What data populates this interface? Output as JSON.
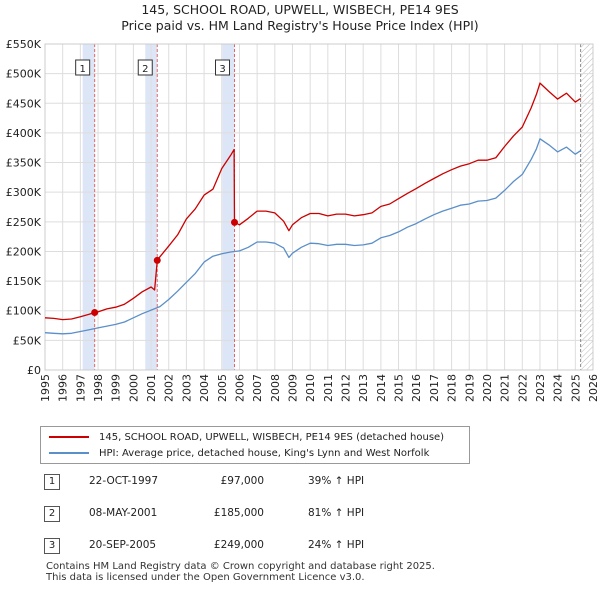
{
  "title_line1": "145, SCHOOL ROAD, UPWELL, WISBECH, PE14 9ES",
  "title_line2": "Price paid vs. HM Land Registry's House Price Index (HPI)",
  "colors": {
    "property": "#cc0000",
    "hpi": "#5b8fc9",
    "sale_band": "#dde6f6",
    "sale_line": "#e06666",
    "future": "#888888"
  },
  "chart_data": {
    "type": "line",
    "xlim": [
      1995,
      2026
    ],
    "ylim": [
      0,
      550000
    ],
    "x_ticks": [
      1995,
      1996,
      1997,
      1998,
      1999,
      2000,
      2001,
      2002,
      2003,
      2004,
      2005,
      2006,
      2007,
      2008,
      2009,
      2010,
      2011,
      2012,
      2013,
      2014,
      2015,
      2016,
      2017,
      2018,
      2019,
      2020,
      2021,
      2022,
      2023,
      2024,
      2025,
      2026
    ],
    "y_ticks": [
      {
        "value": 0,
        "label": "£0"
      },
      {
        "value": 50000,
        "label": "£50K"
      },
      {
        "value": 100000,
        "label": "£100K"
      },
      {
        "value": 150000,
        "label": "£150K"
      },
      {
        "value": 200000,
        "label": "£200K"
      },
      {
        "value": 250000,
        "label": "£250K"
      },
      {
        "value": 300000,
        "label": "£300K"
      },
      {
        "value": 350000,
        "label": "£350K"
      },
      {
        "value": 400000,
        "label": "£400K"
      },
      {
        "value": 450000,
        "label": "£450K"
      },
      {
        "value": 500000,
        "label": "£500K"
      },
      {
        "value": 550000,
        "label": "£550K"
      }
    ],
    "grid": true,
    "data_end": 2025.3,
    "series": [
      {
        "name": "145, SCHOOL ROAD, UPWELL, WISBECH, PE14 9ES (detached house)",
        "x": [
          1995.0,
          1995.5,
          1996.0,
          1996.5,
          1997.0,
          1997.5,
          1997.8,
          1998.0,
          1998.5,
          1999.0,
          1999.5,
          2000.0,
          2000.5,
          2001.0,
          2001.2,
          2001.35,
          2001.5,
          2002.0,
          2002.5,
          2003.0,
          2003.5,
          2004.0,
          2004.5,
          2005.0,
          2005.5,
          2005.7,
          2005.72,
          2006.0,
          2006.5,
          2007.0,
          2007.5,
          2008.0,
          2008.5,
          2008.8,
          2009.0,
          2009.5,
          2010.0,
          2010.5,
          2011.0,
          2011.5,
          2012.0,
          2012.5,
          2013.0,
          2013.5,
          2014.0,
          2014.5,
          2015.0,
          2015.5,
          2016.0,
          2016.5,
          2017.0,
          2017.5,
          2018.0,
          2018.5,
          2019.0,
          2019.5,
          2020.0,
          2020.5,
          2021.0,
          2021.5,
          2022.0,
          2022.5,
          2022.8,
          2023.0,
          2023.5,
          2024.0,
          2024.5,
          2025.0,
          2025.3
        ],
        "values": [
          88000,
          87000,
          85000,
          86000,
          90000,
          94000,
          97000,
          98000,
          103000,
          106000,
          111000,
          121000,
          132000,
          140000,
          135000,
          185000,
          191000,
          209000,
          228000,
          255000,
          272000,
          295000,
          305000,
          340000,
          362000,
          372000,
          249000,
          245000,
          256000,
          268000,
          268000,
          265000,
          251000,
          235000,
          245000,
          257000,
          264000,
          264000,
          260000,
          263000,
          263000,
          260000,
          262000,
          265000,
          276000,
          280000,
          289000,
          298000,
          306000,
          315000,
          323000,
          331000,
          338000,
          344000,
          348000,
          354000,
          354000,
          358000,
          377000,
          395000,
          410000,
          442000,
          465000,
          484000,
          470000,
          457000,
          467000,
          452000,
          458000
        ]
      },
      {
        "name": "HPI: Average price, detached house, King's Lynn and West Norfolk",
        "x": [
          1995.0,
          1995.5,
          1996.0,
          1996.5,
          1997.0,
          1997.5,
          1998.0,
          1998.5,
          1999.0,
          1999.5,
          2000.0,
          2000.5,
          2001.0,
          2001.5,
          2002.0,
          2002.5,
          2003.0,
          2003.5,
          2004.0,
          2004.5,
          2005.0,
          2005.5,
          2006.0,
          2006.5,
          2007.0,
          2007.5,
          2008.0,
          2008.5,
          2008.8,
          2009.0,
          2009.5,
          2010.0,
          2010.5,
          2011.0,
          2011.5,
          2012.0,
          2012.5,
          2013.0,
          2013.5,
          2014.0,
          2014.5,
          2015.0,
          2015.5,
          2016.0,
          2016.5,
          2017.0,
          2017.5,
          2018.0,
          2018.5,
          2019.0,
          2019.5,
          2020.0,
          2020.5,
          2021.0,
          2021.5,
          2022.0,
          2022.5,
          2022.8,
          2023.0,
          2023.5,
          2024.0,
          2024.5,
          2025.0,
          2025.3
        ],
        "values": [
          63000,
          62000,
          61000,
          62000,
          65000,
          68000,
          71000,
          74000,
          77000,
          81000,
          88000,
          95000,
          101000,
          107000,
          119000,
          133000,
          148000,
          163000,
          182000,
          192000,
          196000,
          199000,
          201000,
          207000,
          216000,
          216000,
          214000,
          206000,
          190000,
          197000,
          207000,
          214000,
          213000,
          210000,
          212000,
          212000,
          210000,
          211000,
          214000,
          223000,
          227000,
          233000,
          241000,
          247000,
          255000,
          262000,
          268000,
          273000,
          278000,
          280000,
          285000,
          286000,
          290000,
          303000,
          318000,
          330000,
          355000,
          373000,
          390000,
          380000,
          368000,
          376000,
          364000,
          370000
        ]
      }
    ],
    "sales": [
      {
        "label": "1",
        "x": 1997.81,
        "value": 97000
      },
      {
        "label": "2",
        "x": 2001.35,
        "value": 185000
      },
      {
        "label": "3",
        "x": 2005.72,
        "value": 249000
      }
    ]
  },
  "legend": {
    "property": "145, SCHOOL ROAD, UPWELL, WISBECH, PE14 9ES (detached house)",
    "hpi": "HPI: Average price, detached house, King's Lynn and West Norfolk"
  },
  "transactions": [
    {
      "num": "1",
      "date": "22-OCT-1997",
      "price": "£97,000",
      "hpi": "39% ↑ HPI"
    },
    {
      "num": "2",
      "date": "08-MAY-2001",
      "price": "£185,000",
      "hpi": "81% ↑ HPI"
    },
    {
      "num": "3",
      "date": "20-SEP-2005",
      "price": "£249,000",
      "hpi": "24% ↑ HPI"
    }
  ],
  "footer": {
    "line1": "Contains HM Land Registry data © Crown copyright and database right 2025.",
    "line2": "This data is licensed under the Open Government Licence v3.0."
  }
}
